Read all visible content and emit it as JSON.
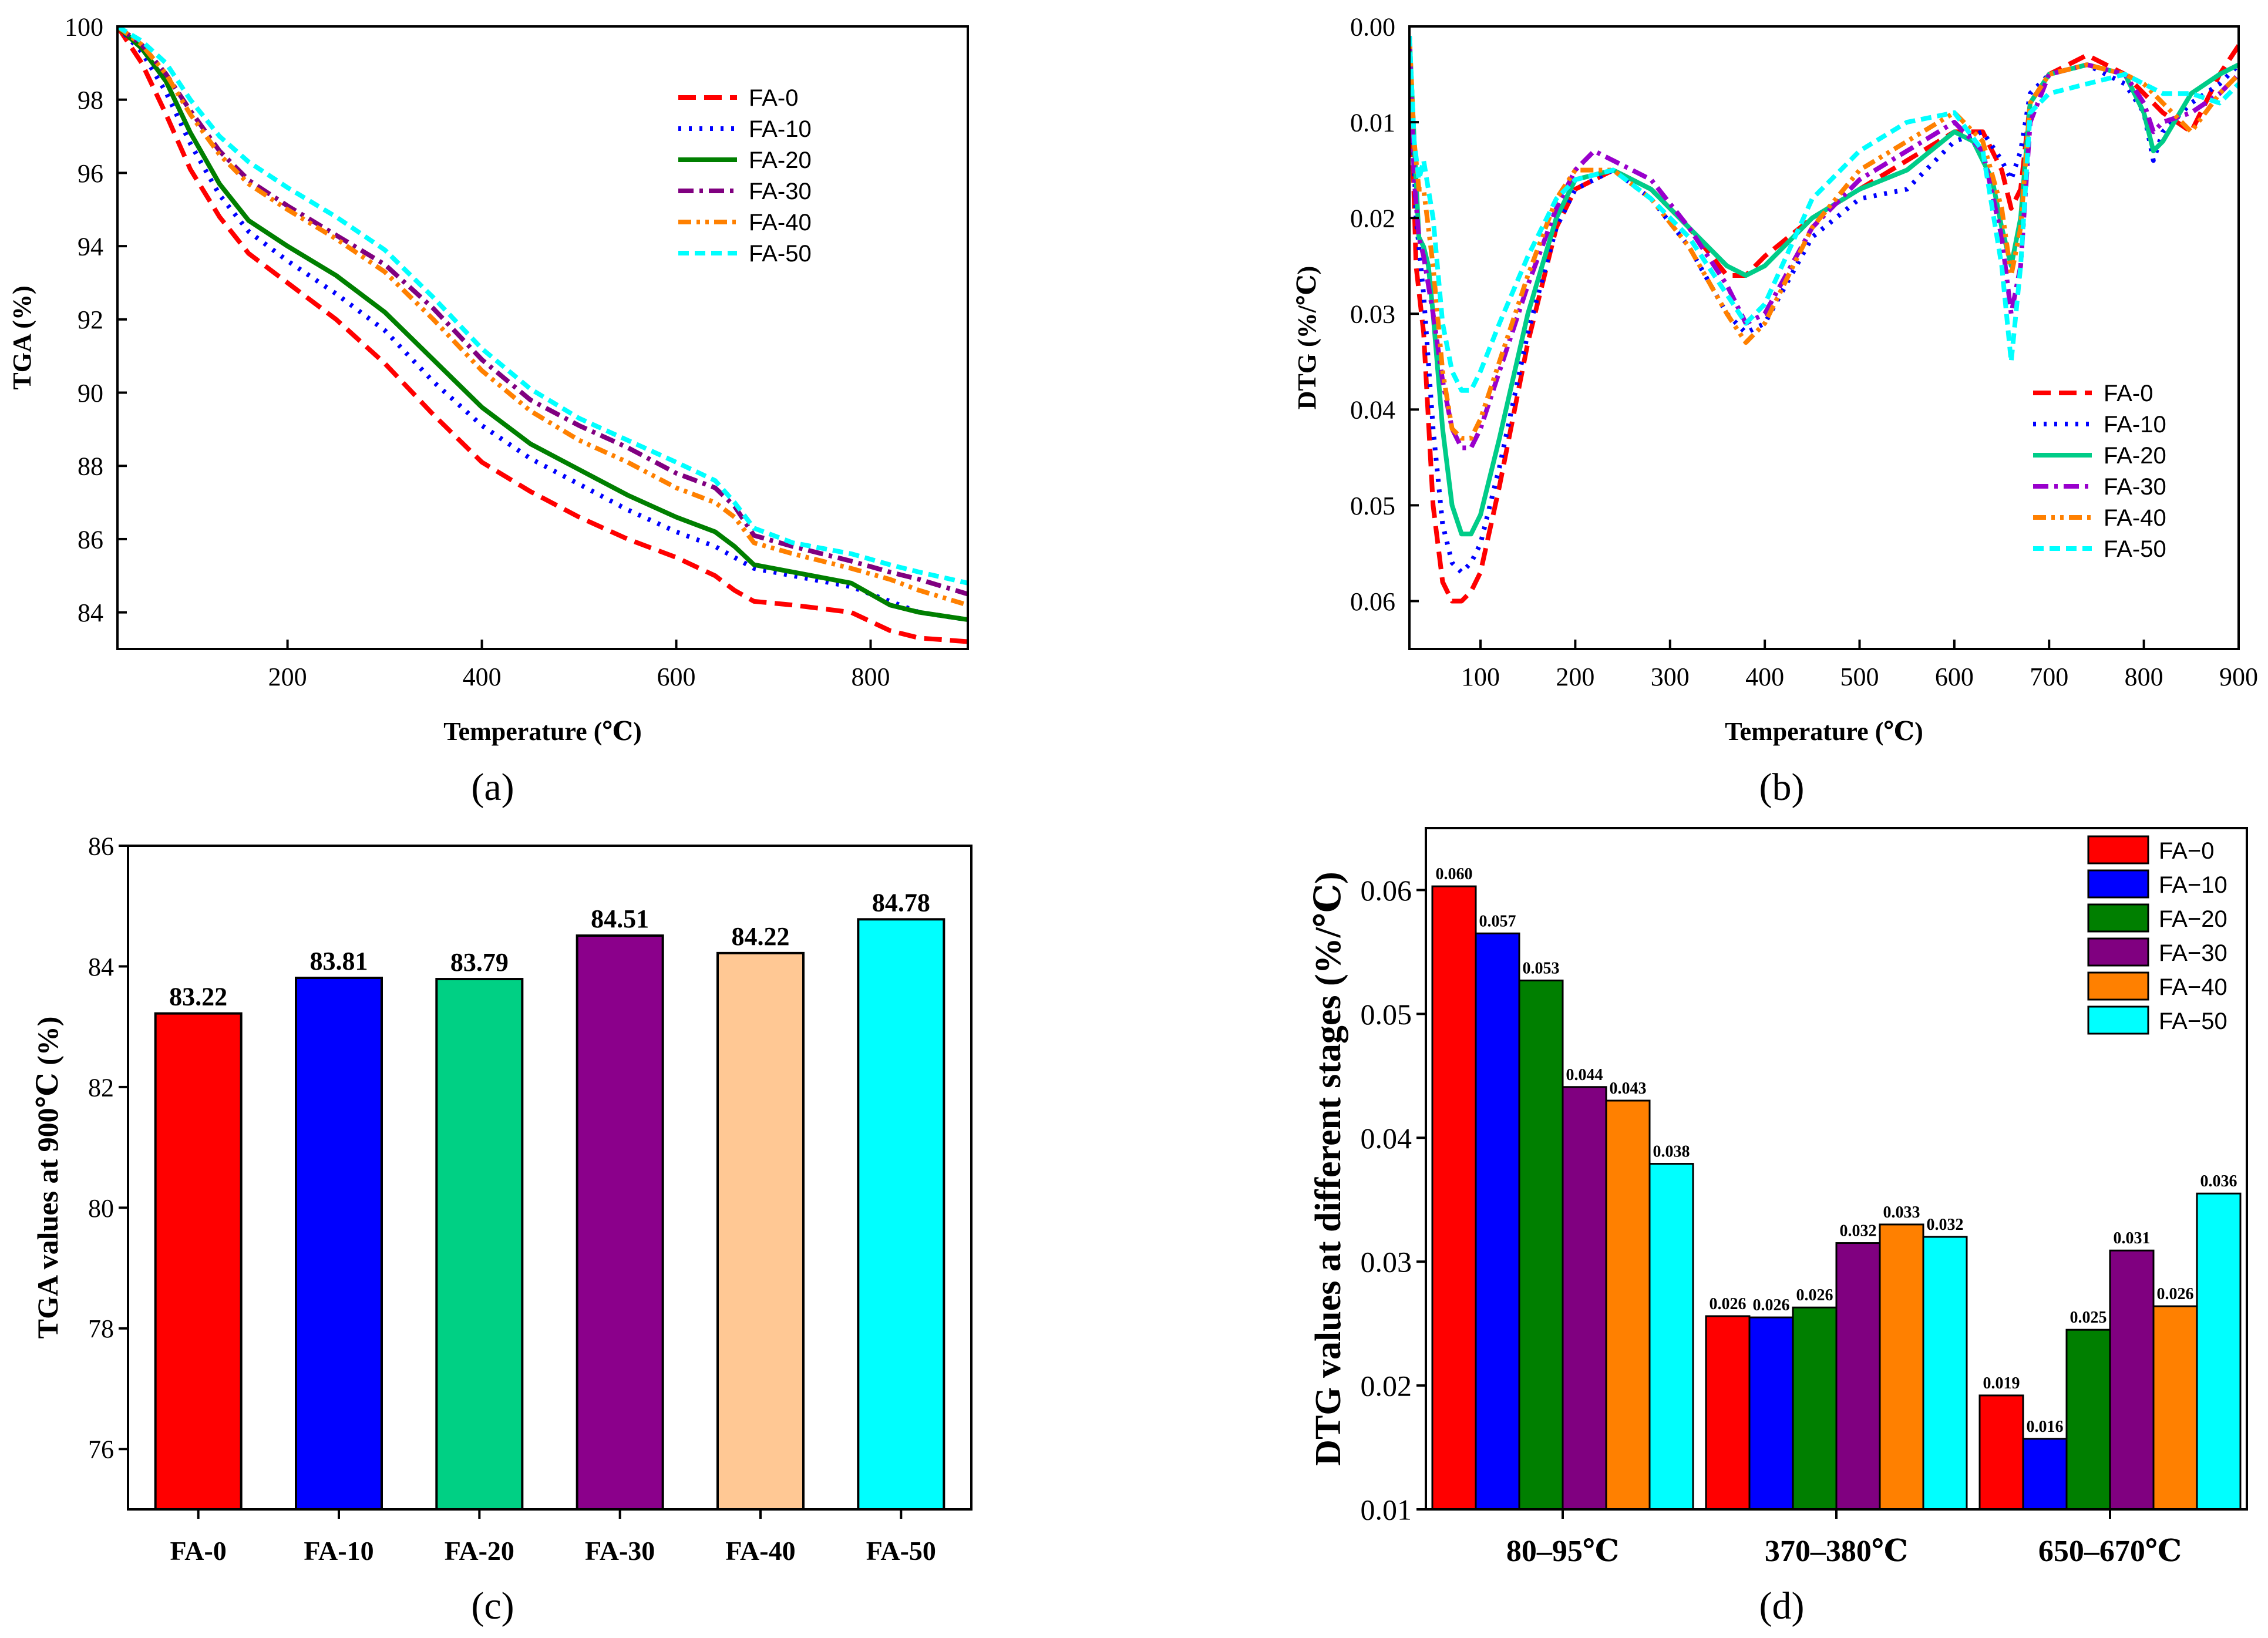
{
  "panel_labels": {
    "a": "(a)",
    "b": "(b)",
    "c": "(c)",
    "d": "(d)"
  },
  "colors": {
    "FA-0": "#ff0000",
    "FA-10": "#0000ff",
    "FA-20": "#007f00",
    "FA-30": "#800080",
    "FA-40": "#ff8000",
    "FA-50": "#00ffff"
  },
  "chart_data": [
    {
      "id": "a",
      "type": "line",
      "title": "",
      "xlabel": "Temperature (℃)",
      "ylabel": "TGA (%)",
      "xlim": [
        25,
        900
      ],
      "ylim": [
        83,
        100
      ],
      "xticks": [
        200,
        400,
        600,
        800
      ],
      "yticks": [
        84,
        86,
        88,
        90,
        92,
        94,
        96,
        98,
        100
      ],
      "legend_position": "top-right",
      "series": [
        {
          "name": "FA-0",
          "color": "#ff0000",
          "dash": "long-dash",
          "x": [
            25,
            50,
            75,
            100,
            130,
            160,
            200,
            250,
            300,
            350,
            400,
            450,
            500,
            550,
            600,
            640,
            660,
            680,
            720,
            780,
            820,
            850,
            900
          ],
          "y": [
            100,
            99,
            97.6,
            96.1,
            94.8,
            93.8,
            93,
            92,
            90.8,
            89.4,
            88.1,
            87.3,
            86.6,
            86,
            85.5,
            85,
            84.6,
            84.3,
            84.2,
            84,
            83.5,
            83.3,
            83.2
          ]
        },
        {
          "name": "FA-10",
          "color": "#0000ff",
          "dash": "dot",
          "x": [
            25,
            50,
            75,
            100,
            130,
            160,
            200,
            250,
            300,
            350,
            400,
            450,
            500,
            550,
            600,
            640,
            660,
            680,
            720,
            780,
            820,
            850,
            900
          ],
          "y": [
            100,
            99.3,
            98.2,
            96.8,
            95.4,
            94.4,
            93.6,
            92.7,
            91.7,
            90.3,
            89.1,
            88.2,
            87.5,
            86.8,
            86.2,
            85.8,
            85.5,
            85.2,
            85,
            84.7,
            84.3,
            84,
            83.8
          ]
        },
        {
          "name": "FA-20",
          "color": "#007f00",
          "dash": "solid",
          "x": [
            25,
            50,
            75,
            100,
            130,
            160,
            200,
            250,
            300,
            350,
            400,
            450,
            500,
            550,
            600,
            640,
            660,
            680,
            720,
            780,
            820,
            850,
            900
          ],
          "y": [
            100,
            99.4,
            98.5,
            97.1,
            95.7,
            94.7,
            94,
            93.2,
            92.2,
            90.9,
            89.6,
            88.6,
            87.9,
            87.2,
            86.6,
            86.2,
            85.8,
            85.3,
            85.1,
            84.8,
            84.2,
            84,
            83.8
          ]
        },
        {
          "name": "FA-30",
          "color": "#800080",
          "dash": "dash-dot",
          "x": [
            25,
            50,
            75,
            100,
            130,
            160,
            200,
            250,
            300,
            350,
            400,
            450,
            500,
            550,
            600,
            640,
            660,
            680,
            720,
            780,
            820,
            850,
            900
          ],
          "y": [
            100,
            99.5,
            98.7,
            97.7,
            96.6,
            95.8,
            95.1,
            94.3,
            93.5,
            92.3,
            90.9,
            89.8,
            89.1,
            88.5,
            87.8,
            87.4,
            86.9,
            86.1,
            85.8,
            85.4,
            85.1,
            84.9,
            84.5
          ]
        },
        {
          "name": "FA-40",
          "color": "#ff8000",
          "dash": "dash-dot-dot",
          "x": [
            25,
            50,
            75,
            100,
            130,
            160,
            200,
            250,
            300,
            350,
            400,
            450,
            500,
            550,
            600,
            640,
            660,
            680,
            720,
            780,
            820,
            850,
            900
          ],
          "y": [
            100,
            99.5,
            98.7,
            97.6,
            96.5,
            95.7,
            95,
            94.2,
            93.3,
            92,
            90.6,
            89.5,
            88.7,
            88.1,
            87.4,
            87,
            86.6,
            85.9,
            85.6,
            85.2,
            84.9,
            84.6,
            84.2
          ]
        },
        {
          "name": "FA-50",
          "color": "#00ffff",
          "dash": "short-dash",
          "x": [
            25,
            50,
            75,
            100,
            130,
            160,
            200,
            250,
            300,
            350,
            400,
            450,
            500,
            550,
            600,
            640,
            660,
            680,
            720,
            780,
            820,
            850,
            900
          ],
          "y": [
            100,
            99.6,
            99,
            98,
            97,
            96.3,
            95.6,
            94.8,
            93.9,
            92.6,
            91.2,
            90.1,
            89.3,
            88.7,
            88.1,
            87.6,
            87,
            86.3,
            85.9,
            85.6,
            85.3,
            85.1,
            84.8
          ]
        }
      ]
    },
    {
      "id": "b",
      "type": "line",
      "title": "",
      "xlabel": "Temperature (℃)",
      "ylabel": "DTG (%/℃)",
      "xlim": [
        25,
        900
      ],
      "ylim": [
        0,
        0.065
      ],
      "y_inverted": true,
      "xticks": [
        100,
        200,
        300,
        400,
        500,
        600,
        700,
        800,
        900
      ],
      "yticks": [
        0.0,
        0.01,
        0.02,
        0.03,
        0.04,
        0.05,
        0.06
      ],
      "ytick_labels": [
        "0.00",
        "0.01",
        "0.02",
        "0.03",
        "0.04",
        "0.05",
        "0.06"
      ],
      "legend_position": "bottom-right",
      "series": [
        {
          "name": "FA-0",
          "color": "#ff0000",
          "dash": "long-dash",
          "x": [
            25,
            32,
            40,
            50,
            60,
            70,
            80,
            90,
            100,
            120,
            150,
            180,
            200,
            240,
            280,
            320,
            360,
            380,
            400,
            450,
            500,
            550,
            600,
            630,
            650,
            660,
            670,
            680,
            700,
            740,
            780,
            800,
            820,
            850,
            880,
            900
          ],
          "y": [
            0.001,
            0.025,
            0.032,
            0.05,
            0.058,
            0.06,
            0.06,
            0.059,
            0.057,
            0.048,
            0.033,
            0.021,
            0.017,
            0.015,
            0.017,
            0.021,
            0.026,
            0.026,
            0.024,
            0.02,
            0.017,
            0.014,
            0.011,
            0.011,
            0.015,
            0.019,
            0.017,
            0.008,
            0.005,
            0.003,
            0.005,
            0.007,
            0.009,
            0.011,
            0.005,
            0.002
          ]
        },
        {
          "name": "FA-10",
          "color": "#0000ff",
          "dash": "dot",
          "x": [
            25,
            32,
            40,
            50,
            60,
            70,
            80,
            90,
            100,
            120,
            150,
            180,
            200,
            240,
            280,
            320,
            360,
            380,
            400,
            450,
            500,
            550,
            600,
            630,
            650,
            660,
            670,
            680,
            700,
            740,
            780,
            800,
            810,
            820,
            850,
            880,
            900
          ],
          "y": [
            0.001,
            0.02,
            0.028,
            0.042,
            0.052,
            0.056,
            0.057,
            0.056,
            0.054,
            0.046,
            0.032,
            0.021,
            0.017,
            0.015,
            0.018,
            0.023,
            0.03,
            0.032,
            0.031,
            0.022,
            0.018,
            0.017,
            0.012,
            0.011,
            0.014,
            0.016,
            0.013,
            0.007,
            0.005,
            0.004,
            0.006,
            0.009,
            0.014,
            0.011,
            0.008,
            0.006,
            0.004
          ]
        },
        {
          "name": "FA-20",
          "color": "#00cc88",
          "dash": "solid",
          "x": [
            25,
            30,
            35,
            40,
            45,
            50,
            60,
            70,
            80,
            90,
            100,
            120,
            150,
            180,
            200,
            240,
            280,
            320,
            360,
            380,
            400,
            450,
            500,
            550,
            600,
            620,
            640,
            650,
            660,
            670,
            680,
            700,
            740,
            780,
            800,
            810,
            820,
            850,
            880,
            900
          ],
          "y": [
            0.001,
            0.012,
            0.022,
            0.023,
            0.025,
            0.03,
            0.042,
            0.05,
            0.053,
            0.053,
            0.051,
            0.043,
            0.03,
            0.02,
            0.016,
            0.015,
            0.017,
            0.021,
            0.025,
            0.026,
            0.025,
            0.02,
            0.017,
            0.015,
            0.011,
            0.012,
            0.016,
            0.021,
            0.025,
            0.02,
            0.008,
            0.005,
            0.004,
            0.005,
            0.009,
            0.013,
            0.012,
            0.007,
            0.005,
            0.004
          ]
        },
        {
          "name": "FA-30",
          "color": "#9900cc",
          "dash": "dash-dot",
          "x": [
            25,
            30,
            35,
            40,
            50,
            60,
            70,
            80,
            90,
            100,
            120,
            150,
            180,
            200,
            220,
            240,
            280,
            320,
            360,
            380,
            400,
            450,
            500,
            550,
            600,
            630,
            650,
            660,
            670,
            680,
            700,
            740,
            780,
            800,
            810,
            820,
            850,
            880,
            900
          ],
          "y": [
            0.001,
            0.016,
            0.022,
            0.024,
            0.03,
            0.037,
            0.042,
            0.044,
            0.044,
            0.042,
            0.036,
            0.027,
            0.019,
            0.015,
            0.013,
            0.014,
            0.016,
            0.021,
            0.027,
            0.031,
            0.03,
            0.021,
            0.016,
            0.013,
            0.01,
            0.013,
            0.022,
            0.03,
            0.025,
            0.01,
            0.005,
            0.004,
            0.005,
            0.008,
            0.011,
            0.01,
            0.009,
            0.007,
            0.005
          ]
        },
        {
          "name": "FA-40",
          "color": "#ff8000",
          "dash": "dash-dot-dot",
          "x": [
            25,
            30,
            35,
            40,
            50,
            60,
            70,
            80,
            90,
            100,
            120,
            150,
            180,
            200,
            240,
            280,
            320,
            360,
            380,
            400,
            450,
            500,
            550,
            600,
            630,
            650,
            660,
            670,
            680,
            700,
            740,
            780,
            800,
            820,
            850,
            880,
            900
          ],
          "y": [
            0.001,
            0.012,
            0.017,
            0.017,
            0.025,
            0.036,
            0.042,
            0.043,
            0.043,
            0.041,
            0.035,
            0.026,
            0.018,
            0.015,
            0.015,
            0.018,
            0.023,
            0.03,
            0.033,
            0.031,
            0.021,
            0.015,
            0.012,
            0.009,
            0.012,
            0.019,
            0.026,
            0.021,
            0.008,
            0.005,
            0.004,
            0.005,
            0.006,
            0.008,
            0.011,
            0.007,
            0.005
          ]
        },
        {
          "name": "FA-50",
          "color": "#00ffff",
          "dash": "short-dash",
          "x": [
            25,
            30,
            35,
            40,
            50,
            60,
            70,
            80,
            90,
            100,
            120,
            150,
            180,
            200,
            240,
            280,
            320,
            360,
            380,
            400,
            450,
            500,
            550,
            600,
            630,
            650,
            660,
            670,
            680,
            700,
            740,
            780,
            800,
            820,
            850,
            880,
            900
          ],
          "y": [
            0.001,
            0.012,
            0.016,
            0.014,
            0.02,
            0.031,
            0.036,
            0.038,
            0.038,
            0.036,
            0.031,
            0.024,
            0.018,
            0.016,
            0.015,
            0.018,
            0.022,
            0.028,
            0.031,
            0.029,
            0.018,
            0.013,
            0.01,
            0.009,
            0.013,
            0.025,
            0.035,
            0.025,
            0.009,
            0.007,
            0.006,
            0.005,
            0.006,
            0.007,
            0.007,
            0.008,
            0.006
          ]
        }
      ]
    },
    {
      "id": "c",
      "type": "bar",
      "title": "",
      "xlabel": "",
      "ylabel": "TGA values at 900℃ (%)",
      "ylim": [
        75,
        86
      ],
      "yticks": [
        76,
        78,
        80,
        82,
        84,
        86
      ],
      "categories": [
        "FA-0",
        "FA-10",
        "FA-20",
        "FA-30",
        "FA-40",
        "FA-50"
      ],
      "values": [
        83.22,
        83.81,
        83.79,
        84.51,
        84.22,
        84.78
      ],
      "value_labels": [
        "83.22",
        "83.81",
        "83.79",
        "84.51",
        "84.22",
        "84.78"
      ],
      "bar_colors": [
        "#ff0000",
        "#0000ff",
        "#00d084",
        "#8b008b",
        "#ffc894",
        "#00ffff"
      ]
    },
    {
      "id": "d",
      "type": "bar",
      "title": "",
      "xlabel": "",
      "ylabel": "DTG values at different stages (%/℃)",
      "ylim": [
        0.01,
        0.065
      ],
      "yticks": [
        0.01,
        0.02,
        0.03,
        0.04,
        0.05,
        0.06
      ],
      "ytick_labels": [
        "0.01",
        "0.02",
        "0.03",
        "0.04",
        "0.05",
        "0.06"
      ],
      "categories": [
        "80–95℃",
        "370–380℃",
        "650–670℃"
      ],
      "legend_position": "top-right",
      "series": [
        {
          "name": "FA−0",
          "color": "#ff0000",
          "values": [
            0.0603,
            0.0256,
            0.0192
          ],
          "labels": [
            "0.060",
            "0.026",
            "0.019"
          ]
        },
        {
          "name": "FA−10",
          "color": "#0000ff",
          "values": [
            0.0565,
            0.0255,
            0.0157
          ],
          "labels": [
            "0.057",
            "0.026",
            "0.016"
          ]
        },
        {
          "name": "FA−20",
          "color": "#007f00",
          "values": [
            0.0527,
            0.0263,
            0.0245
          ],
          "labels": [
            "0.053",
            "0.026",
            "0.025"
          ]
        },
        {
          "name": "FA−30",
          "color": "#800080",
          "values": [
            0.0441,
            0.0315,
            0.0309
          ],
          "labels": [
            "0.044",
            "0.032",
            "0.031"
          ]
        },
        {
          "name": "FA−40",
          "color": "#ff8000",
          "values": [
            0.043,
            0.033,
            0.0264
          ],
          "labels": [
            "0.043",
            "0.033",
            "0.026"
          ]
        },
        {
          "name": "FA−50",
          "color": "#00ffff",
          "values": [
            0.0379,
            0.032,
            0.0355
          ],
          "labels": [
            "0.038",
            "0.032",
            "0.036"
          ]
        }
      ]
    }
  ]
}
